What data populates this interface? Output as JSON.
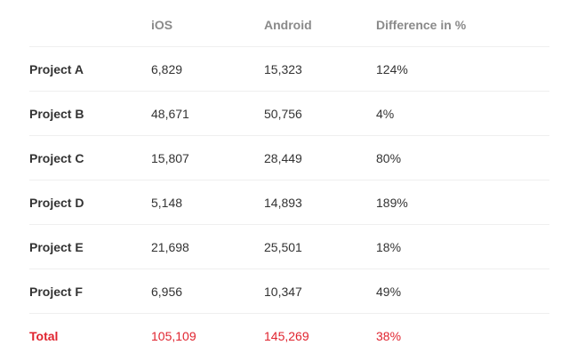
{
  "headers": [
    "",
    "iOS",
    "Android",
    "Difference in %"
  ],
  "rows": [
    {
      "label": "Project A",
      "ios": "6,829",
      "android": "15,323",
      "diff": "124%"
    },
    {
      "label": "Project B",
      "ios": "48,671",
      "android": "50,756",
      "diff": "4%"
    },
    {
      "label": "Project C",
      "ios": "15,807",
      "android": "28,449",
      "diff": "80%"
    },
    {
      "label": "Project D",
      "ios": "5,148",
      "android": "14,893",
      "diff": "189%"
    },
    {
      "label": "Project E",
      "ios": "21,698",
      "android": "25,501",
      "diff": "18%"
    },
    {
      "label": "Project F",
      "ios": "6,956",
      "android": "10,347",
      "diff": "49%"
    }
  ],
  "total": {
    "label": "Total",
    "ios": "105,109",
    "android": "145,269",
    "diff": "38%"
  },
  "colors": {
    "total": "#e0242f",
    "header": "#8a8a8a",
    "text": "#333333"
  }
}
